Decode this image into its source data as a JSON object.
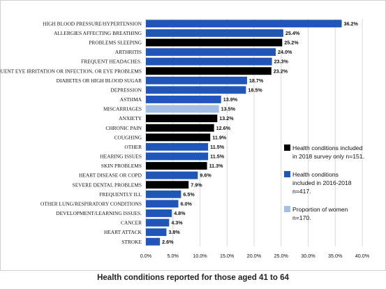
{
  "caption": "Health conditions reported for those aged 41 to 64",
  "chart_data": {
    "type": "bar",
    "orientation": "horizontal",
    "categories": [
      "HIGH BLOOD PRESSURE/HYPERTENSION",
      "ALLERGIES AFFECTING BREATHING",
      "PROBLEMS SLEEPING",
      "ARTHRITIS",
      "FREQUENT HEADACHES.",
      "FREQUENT EYE IRRITATION OR INFECTION, OR EYE PROBLEMS",
      "DIABETES OR HIGH BLOOD SUGAR",
      "DEPRESSION",
      "ASTHMA",
      "MISCARRIAGES",
      "ANXIETY",
      "CHRONIC PAIN",
      "COUGHING",
      "OTHER",
      "HEARING ISSUES",
      "SKIN PROBLEMS",
      "HEART DISEASE OR COPD",
      "SEVERE DENTAL PROBLEMS",
      "FREQUENTLY ILL",
      "OTHER LUNG/RESPIRATORY CONDITIONS",
      "DEVELOPMENT/LEARNING ISSUES.",
      "CANCER",
      "HEART ATTACK",
      "STROKE"
    ],
    "values": [
      36.2,
      25.4,
      25.2,
      24.0,
      23.3,
      23.2,
      18.7,
      18.5,
      13.9,
      13.5,
      13.2,
      12.6,
      11.9,
      11.5,
      11.5,
      11.3,
      9.6,
      7.9,
      6.5,
      6.0,
      4.8,
      4.3,
      3.8,
      2.6
    ],
    "value_labels": [
      "36.2%",
      "25.4%",
      "25.2%",
      "24.0%",
      "23.3%",
      "23.2%",
      "18.7%",
      "18.5%",
      "13.9%",
      "13.5%",
      "13.2%",
      "12.6%",
      "11.9%",
      "11.5%",
      "11.5%",
      "11.3%",
      "9.6%",
      "7.9%",
      "6.5%",
      "6.0%",
      "4.8%",
      "4.3%",
      "3.8%",
      "2.6%"
    ],
    "groups": [
      "2016-2018",
      "2016-2018",
      "2018",
      "2016-2018",
      "2016-2018",
      "2018",
      "2016-2018",
      "2016-2018",
      "2016-2018",
      "women",
      "2018",
      "2018",
      "2018",
      "2016-2018",
      "2016-2018",
      "2018",
      "2016-2018",
      "2018",
      "2016-2018",
      "2016-2018",
      "2016-2018",
      "2016-2018",
      "2016-2018",
      "2016-2018"
    ],
    "group_colors": {
      "2018": "#000000",
      "2016-2018": "#1f56b8",
      "women": "#a4bfe6"
    },
    "legend": [
      {
        "group": "2018",
        "lines": [
          "Health conditions included",
          "in 2018 survey only n=151."
        ]
      },
      {
        "group": "2016-2018",
        "lines": [
          "Health conditions",
          "included in 2016-2018",
          "n=417."
        ]
      },
      {
        "group": "women",
        "lines": [
          "Proportion of women",
          "n=170."
        ]
      }
    ],
    "legend_position": "right",
    "xlim": [
      0,
      40
    ],
    "xticks": [
      0,
      5,
      10,
      15,
      20,
      25,
      30,
      35,
      40
    ],
    "xtick_labels": [
      "0.0%",
      "5.0%",
      "10.0%",
      "15.0%",
      "20.0%",
      "25.0%",
      "30.0%",
      "35.0%",
      "40.0%"
    ],
    "grid": true,
    "title": "",
    "xlabel": "",
    "ylabel": ""
  }
}
